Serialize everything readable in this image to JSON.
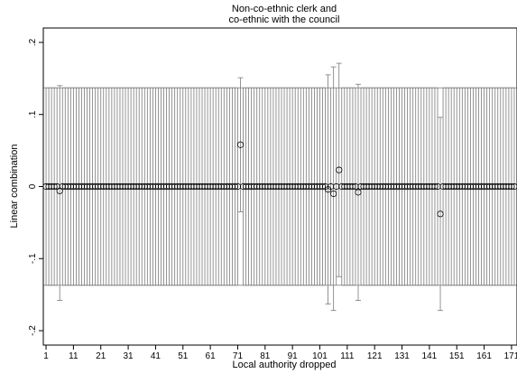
{
  "chart_data": {
    "type": "scatter",
    "title": [
      "Non-co-ethnic clerk and",
      "co-ethnic with the council"
    ],
    "xlabel": "Local authority dropped",
    "ylabel": "Linear combination",
    "xlim": [
      0,
      173
    ],
    "ylim": [
      -0.22,
      0.22
    ],
    "x_ticks": [
      1,
      11,
      21,
      31,
      41,
      51,
      61,
      71,
      81,
      91,
      101,
      111,
      121,
      131,
      141,
      151,
      161,
      171
    ],
    "y_ticks": [
      -0.2,
      -0.1,
      0,
      0.1,
      0.2
    ],
    "y_tick_labels": [
      "-.2",
      "-.1",
      "0",
      ".1",
      ".2"
    ],
    "grid": false,
    "legend": "none",
    "n_points": 172,
    "baseline": {
      "estimate": 0.0,
      "ci_low": -0.137,
      "ci_high": 0.137
    },
    "variant_points": [
      {
        "x": 6,
        "estimate": -0.006,
        "ci_low": -0.158,
        "ci_high": 0.14
      },
      {
        "x": 72,
        "estimate": 0.058,
        "ci_low": -0.035,
        "ci_high": 0.151
      },
      {
        "x": 104,
        "estimate": -0.004,
        "ci_low": -0.163,
        "ci_high": 0.155
      },
      {
        "x": 106,
        "estimate": -0.01,
        "ci_low": -0.172,
        "ci_high": 0.166
      },
      {
        "x": 108,
        "estimate": 0.023,
        "ci_low": -0.125,
        "ci_high": 0.171
      },
      {
        "x": 115,
        "estimate": -0.008,
        "ci_low": -0.158,
        "ci_high": 0.142
      },
      {
        "x": 145,
        "estimate": -0.038,
        "ci_low": -0.172,
        "ci_high": 0.096
      }
    ],
    "colors": {
      "ci": "#7a7a7a",
      "marker": "#000000",
      "frame": "#000000"
    }
  }
}
